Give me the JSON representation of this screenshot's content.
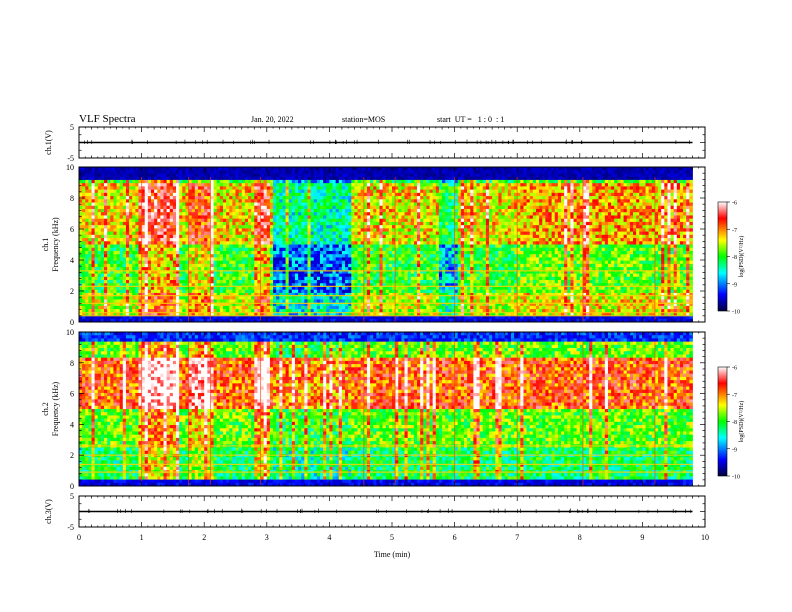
{
  "header": {
    "title": "VLF Spectra",
    "date": "Jan. 20, 2022",
    "station": "station=MOS",
    "start": "start  UT =   1 : 0  : 1"
  },
  "chart_data": [
    {
      "type": "line",
      "ylabel": "ch.1(V)",
      "ylim": [
        -5,
        5
      ],
      "yticks": [
        "5",
        "-5"
      ],
      "xlim": [
        0,
        10
      ],
      "series": [
        {
          "x": [
            0,
            9.8
          ],
          "values": [
            0,
            0
          ]
        }
      ]
    },
    {
      "type": "heatmap",
      "ylabel_line1": "ch.1",
      "ylabel_line2": "Frequency  (kHz)",
      "ylim": [
        0,
        10
      ],
      "yticks": [
        "0",
        "2",
        "4",
        "6",
        "8",
        "10"
      ],
      "xlim": [
        0,
        10
      ],
      "colorbar": {
        "label": "log(PSD)(V²/Hz)",
        "range": [
          -10,
          -6
        ],
        "ticks": [
          "-6",
          "-7",
          "-8",
          "-9",
          "-10"
        ]
      }
    },
    {
      "type": "heatmap",
      "ylabel_line1": "ch.2",
      "ylabel_line2": "Frequency  (kHz)",
      "ylim": [
        0,
        10
      ],
      "yticks": [
        "0",
        "2",
        "4",
        "6",
        "8",
        "10"
      ],
      "xlim": [
        0,
        10
      ],
      "colorbar": {
        "label": "log(PSD)(V²/Hz)",
        "range": [
          -10,
          -6
        ],
        "ticks": [
          "-6",
          "-7",
          "-8",
          "-9",
          "-10"
        ]
      }
    },
    {
      "type": "line",
      "ylabel": "ch.3(V)",
      "ylim": [
        -5,
        5
      ],
      "yticks": [
        "5",
        "-5"
      ],
      "xlim": [
        0,
        10
      ],
      "series": [
        {
          "x": [
            0,
            9.8
          ],
          "values": [
            0,
            0
          ]
        }
      ]
    }
  ],
  "xaxis": {
    "label": "Time  (min)",
    "ticks": [
      "0",
      "1",
      "2",
      "3",
      "4",
      "5",
      "6",
      "7",
      "8",
      "9",
      "10"
    ]
  },
  "colors": {
    "colormap": [
      "#00003c",
      "#0000ff",
      "#00ffff",
      "#00ff00",
      "#ffff00",
      "#ff0000",
      "#ffffff"
    ]
  }
}
